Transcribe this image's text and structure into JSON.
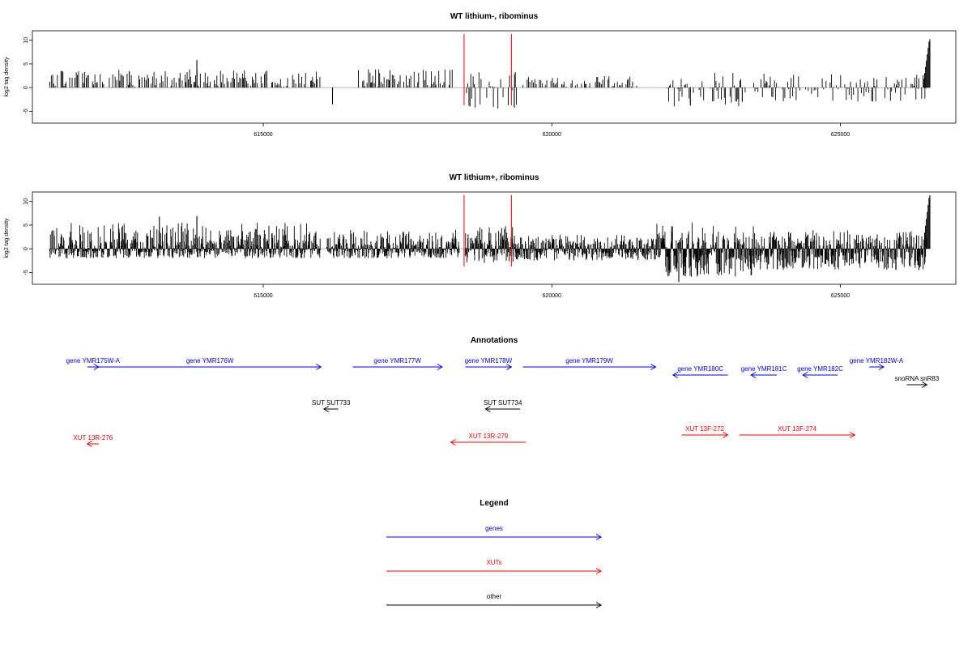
{
  "panels": [
    {
      "title": "WT lithium-, ribominus",
      "ylabel": "log2 tag density",
      "x_ticks": [
        "615000",
        "620000",
        "625000"
      ],
      "y_ticks": [
        "-5",
        "0",
        "5",
        "10"
      ]
    },
    {
      "title": "WT lithium+, ribominus",
      "ylabel": "log2 tag density",
      "x_ticks": [
        "615000",
        "620000",
        "625000"
      ],
      "y_ticks": [
        "-5",
        "0",
        "5",
        "10"
      ]
    }
  ],
  "annotations": {
    "title": "Annotations",
    "features": [
      {
        "label": "gene YMR175W-A",
        "kind": "gene",
        "strand": "+",
        "start": 611950,
        "end": 612150
      },
      {
        "label": "gene YMR176W",
        "kind": "gene",
        "strand": "+",
        "start": 612150,
        "end": 616000
      },
      {
        "label": "gene YMR177W",
        "kind": "gene",
        "strand": "+",
        "start": 616550,
        "end": 618100
      },
      {
        "label": "gene YMR178W",
        "kind": "gene",
        "strand": "+",
        "start": 618500,
        "end": 619300
      },
      {
        "label": "gene YMR179W",
        "kind": "gene",
        "strand": "+",
        "start": 619500,
        "end": 621800
      },
      {
        "label": "gene YMR180C",
        "kind": "gene",
        "strand": "-",
        "start": 622100,
        "end": 623050
      },
      {
        "label": "gene YMR181C",
        "kind": "gene",
        "strand": "-",
        "start": 623450,
        "end": 623900
      },
      {
        "label": "gene YMR182C",
        "kind": "gene",
        "strand": "-",
        "start": 624350,
        "end": 624950
      },
      {
        "label": "gene YMR182W-A",
        "kind": "gene",
        "strand": "+",
        "start": 625500,
        "end": 625750
      },
      {
        "label": "snoRNA snR83",
        "kind": "other",
        "strand": "+",
        "start": 626150,
        "end": 626500
      },
      {
        "label": "SUT SUT733",
        "kind": "other",
        "strand": "-",
        "start": 616050,
        "end": 616300
      },
      {
        "label": "SUT SUT734",
        "kind": "other",
        "strand": "-",
        "start": 618850,
        "end": 619450
      },
      {
        "label": "XUT 13R-276",
        "kind": "xut",
        "strand": "-",
        "start": 611950,
        "end": 612150
      },
      {
        "label": "XUT 13R-279",
        "kind": "xut",
        "strand": "-",
        "start": 618250,
        "end": 619550
      },
      {
        "label": "XUT 13F-272",
        "kind": "xut",
        "strand": "+",
        "start": 622250,
        "end": 623050
      },
      {
        "label": "XUT 13F-274",
        "kind": "xut",
        "strand": "+",
        "start": 623250,
        "end": 625250
      }
    ]
  },
  "legend": {
    "title": "Legend",
    "items": [
      {
        "label": "genes",
        "color": "#0000ff"
      },
      {
        "label": "XUTs",
        "color": "#ff0000"
      },
      {
        "label": "other",
        "color": "#000000"
      }
    ]
  },
  "colors": {
    "gene": "#0000ff",
    "xut": "#ff0000",
    "other": "#000000",
    "marker": "#ff0000"
  },
  "chart_data": [
    {
      "type": "bar",
      "title": "WT lithium-, ribominus",
      "xlabel": "",
      "ylabel": "log2 tag density",
      "xlim": [
        611000,
        627000
      ],
      "ylim": [
        -7.5,
        12
      ],
      "x_ticks": [
        615000,
        620000,
        625000
      ],
      "y_ticks": [
        -5,
        0,
        5,
        10
      ],
      "marker_lines_x": [
        618480,
        619300
      ],
      "density": "sparse",
      "peaks": [
        {
          "x": 612680,
          "y": 3.5
        },
        {
          "x": 613850,
          "y": 5.8
        },
        {
          "x": 616200,
          "y": -3.5
        },
        {
          "x": 619350,
          "y": -4.2
        },
        {
          "x": 622400,
          "y": -3.8
        },
        {
          "x": 623300,
          "y": -3.0
        },
        {
          "x": 626550,
          "y": 10.2
        }
      ],
      "intervals": [
        {
          "start": 611300,
          "end": 616000,
          "y": [
            0,
            4
          ]
        },
        {
          "start": 616600,
          "end": 618300,
          "y": [
            0,
            4
          ]
        },
        {
          "start": 618500,
          "end": 619400,
          "y": [
            -4.5,
            4
          ]
        },
        {
          "start": 619500,
          "end": 621500,
          "y": [
            0,
            2.5
          ]
        },
        {
          "start": 622000,
          "end": 623400,
          "y": [
            -4,
            1
          ]
        },
        {
          "start": 623500,
          "end": 626500,
          "y": [
            -3,
            3
          ]
        }
      ]
    },
    {
      "type": "bar",
      "title": "WT lithium+, ribominus",
      "xlabel": "",
      "ylabel": "log2 tag density",
      "xlim": [
        611000,
        627000
      ],
      "ylim": [
        -7.5,
        12
      ],
      "x_ticks": [
        615000,
        620000,
        625000
      ],
      "y_ticks": [
        -5,
        0,
        5,
        10
      ],
      "marker_lines_x": [
        618480,
        619300
      ],
      "density": "dense",
      "peaks": [
        {
          "x": 613200,
          "y": 6.8
        },
        {
          "x": 613850,
          "y": 6.9
        },
        {
          "x": 622200,
          "y": -7.0
        },
        {
          "x": 626550,
          "y": 11.3
        }
      ],
      "intervals": [
        {
          "start": 611300,
          "end": 616000,
          "y": [
            -2,
            5.5
          ]
        },
        {
          "start": 616100,
          "end": 618400,
          "y": [
            -2,
            4
          ]
        },
        {
          "start": 618500,
          "end": 619400,
          "y": [
            -3,
            5
          ]
        },
        {
          "start": 619400,
          "end": 621800,
          "y": [
            -2.5,
            3
          ]
        },
        {
          "start": 621800,
          "end": 623500,
          "y": [
            -6,
            3.5
          ]
        },
        {
          "start": 623500,
          "end": 626500,
          "y": [
            -4.5,
            3.5
          ]
        }
      ]
    }
  ]
}
